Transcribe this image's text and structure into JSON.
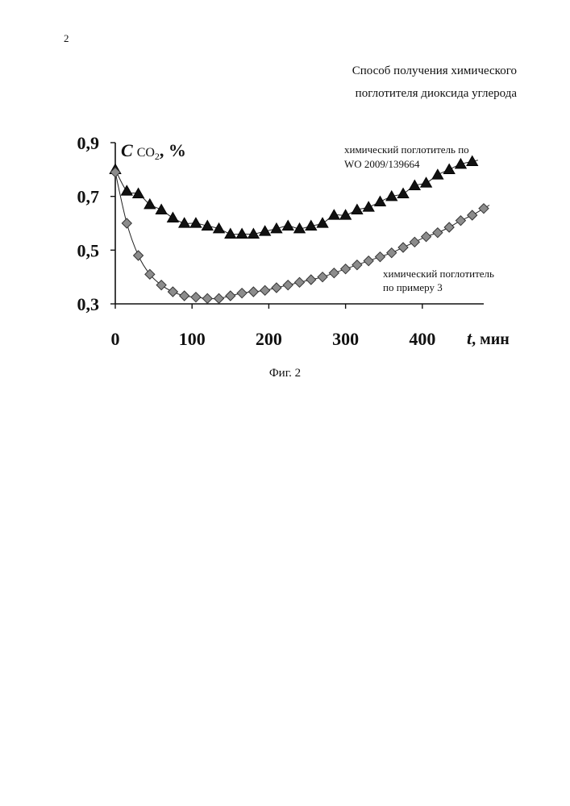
{
  "page": {
    "number": "2",
    "title_lines": [
      "Способ получения химического",
      "поглотителя диоксида углерода"
    ],
    "figure_caption": "Фиг. 2"
  },
  "chart_data": {
    "type": "scatter",
    "title": "",
    "xlabel": "t, мин",
    "xlabel_var": "t",
    "xlabel_unit": ", мин",
    "ylabel": "C CO2, %",
    "ylabel_var": "C",
    "ylabel_chem": "CO",
    "ylabel_sub": "2",
    "ylabel_unit": ", %",
    "xlim": [
      0,
      480
    ],
    "ylim": [
      0.3,
      0.9
    ],
    "x_ticks": [
      0,
      100,
      200,
      300,
      400
    ],
    "x_tick_labels": [
      "0",
      "100",
      "200",
      "300",
      "400"
    ],
    "y_ticks": [
      0.3,
      0.5,
      0.7,
      0.9
    ],
    "y_tick_labels": [
      "0,3",
      "0,5",
      "0,7",
      "0,9"
    ],
    "grid": false,
    "series": [
      {
        "name": "химический поглотитель по WO 2009/139664",
        "label_lines": [
          "химический поглотитель по",
          "WO 2009/139664"
        ],
        "marker": "triangle",
        "color": "#111111",
        "x": [
          0,
          15,
          30,
          45,
          60,
          75,
          90,
          105,
          120,
          135,
          150,
          165,
          180,
          195,
          210,
          225,
          240,
          255,
          270,
          285,
          300,
          315,
          330,
          345,
          360,
          375,
          390,
          405,
          420,
          435,
          450,
          465
        ],
        "y": [
          0.8,
          0.72,
          0.71,
          0.67,
          0.65,
          0.62,
          0.6,
          0.6,
          0.59,
          0.58,
          0.56,
          0.56,
          0.56,
          0.57,
          0.58,
          0.59,
          0.58,
          0.59,
          0.6,
          0.63,
          0.63,
          0.65,
          0.66,
          0.68,
          0.7,
          0.71,
          0.74,
          0.75,
          0.78,
          0.8,
          0.82,
          0.83
        ]
      },
      {
        "name": "химический поглотитель по примеру 3",
        "label_lines": [
          "химический поглотитель",
          "по примеру 3"
        ],
        "marker": "diamond",
        "color": "#8c8c8c",
        "x": [
          0,
          15,
          30,
          45,
          60,
          75,
          90,
          105,
          120,
          135,
          150,
          165,
          180,
          195,
          210,
          225,
          240,
          255,
          270,
          285,
          300,
          315,
          330,
          345,
          360,
          375,
          390,
          405,
          420,
          435,
          450,
          465,
          480
        ],
        "y": [
          0.79,
          0.6,
          0.48,
          0.41,
          0.37,
          0.345,
          0.33,
          0.325,
          0.32,
          0.32,
          0.33,
          0.34,
          0.345,
          0.35,
          0.36,
          0.37,
          0.38,
          0.39,
          0.4,
          0.415,
          0.43,
          0.445,
          0.46,
          0.475,
          0.49,
          0.51,
          0.53,
          0.55,
          0.565,
          0.585,
          0.61,
          0.63,
          0.655
        ]
      }
    ]
  }
}
